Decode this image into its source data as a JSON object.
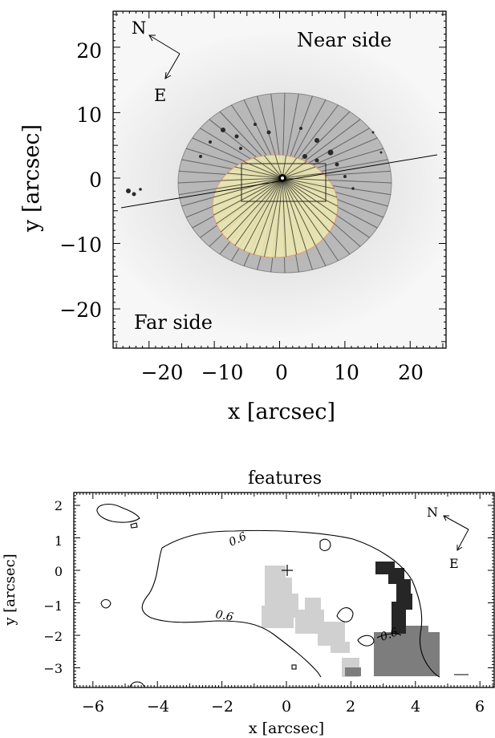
{
  "top_panel": {
    "near_label": "Near side",
    "far_label": "Far side",
    "compass_n": "N",
    "compass_e": "E",
    "xlabel": "x [arcsec]",
    "ylabel": "y [arcsec]",
    "xticks": [
      "−20",
      "−10",
      "0",
      "10",
      "20"
    ],
    "yticks": [
      "20",
      "10",
      "0",
      "−10",
      "−20"
    ]
  },
  "bottom_panel": {
    "title": "features",
    "compass_n": "N",
    "compass_e": "E",
    "xlabel": "x [arcsec]",
    "ylabel": "y [arcsec]",
    "xticks": [
      "−6",
      "−4",
      "−2",
      "0",
      "2",
      "4",
      "6"
    ],
    "yticks": [
      "2",
      "1",
      "0",
      "−1",
      "−2",
      "−3"
    ],
    "contour_label_1": "0.6",
    "contour_label_2": "0.6",
    "contour_label_3": "0.6"
  },
  "chart_data": [
    {
      "type": "image",
      "xlabel": "x [arcsec]",
      "ylabel": "y [arcsec]",
      "xlim": [
        -25,
        25
      ],
      "ylim": [
        -25,
        25
      ],
      "annotations": [
        "Near side",
        "Far side",
        "N",
        "E"
      ]
    },
    {
      "type": "contour",
      "title": "features",
      "xlabel": "x [arcsec]",
      "ylabel": "y [arcsec]",
      "xlim": [
        -6.5,
        6.5
      ],
      "ylim": [
        -3.5,
        2.4
      ],
      "contour_levels": [
        0.6
      ],
      "annotations": [
        "N",
        "E"
      ]
    }
  ]
}
